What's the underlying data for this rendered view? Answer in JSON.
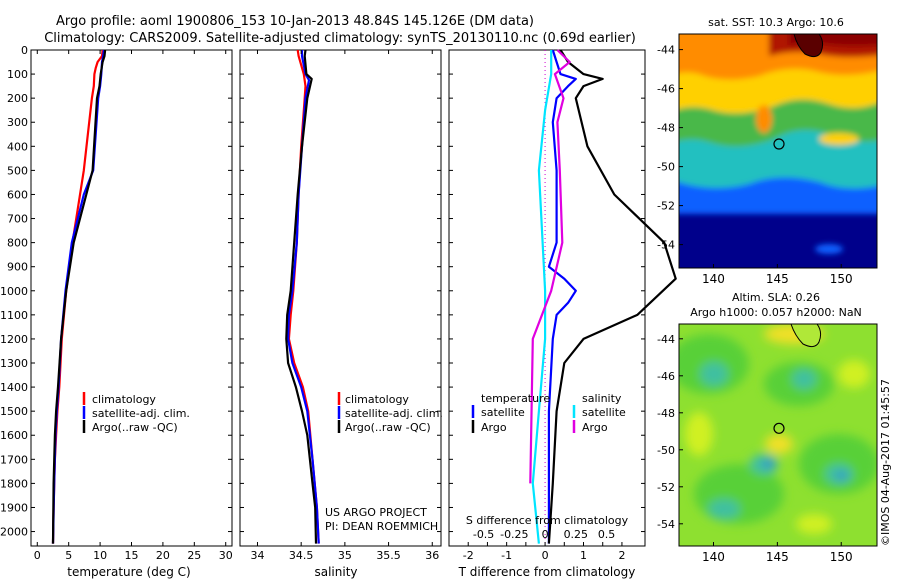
{
  "header": {
    "title_line1": "Argo profile: aoml 1900806_153 10-Jan-2013 48.84S 145.126E (DM data)",
    "title_line2": "Climatology: CARS2009. Satellite-adjusted climatology: synTS_20130110.nc (0.69d earlier)"
  },
  "colors": {
    "climatology": "#ff0000",
    "satellite": "#0000ff",
    "argo": "#000000",
    "s_satellite": "#00e5ff",
    "s_argo": "#e000e0"
  },
  "depth_axis": {
    "ticks": [
      "0",
      "100",
      "200",
      "300",
      "400",
      "500",
      "600",
      "700",
      "800",
      "900",
      "1000",
      "1100",
      "1200",
      "1300",
      "1400",
      "1500",
      "1600",
      "1700",
      "1800",
      "1900",
      "2000"
    ],
    "range": [
      0,
      2060
    ]
  },
  "legend": {
    "climatology": "climatology",
    "satellite_clim": "satellite-adj. clim.",
    "argo": "Argo(..raw -QC)",
    "temperature_header": "temperature",
    "salinity_header": "salinity",
    "satellite": "satellite",
    "argo_short": "Argo"
  },
  "credits": {
    "line1": "US ARGO PROJECT",
    "line2": "PI: DEAN ROEMMICH"
  },
  "footer_stamp": "©IMOS 04-Aug-2017 01:45:57",
  "chart_data": [
    {
      "type": "line",
      "xlabel": "temperature (deg C)",
      "ylabel": "",
      "xlim": [
        -1,
        31
      ],
      "ylim": [
        2060,
        0
      ],
      "xticks": [
        "0",
        "5",
        "10",
        "15",
        "20",
        "25",
        "30"
      ],
      "series": [
        {
          "name": "climatology",
          "x": [
            10.4,
            10.3,
            9.6,
            9.3,
            9.1,
            9.0,
            8.7,
            7.4,
            5.6,
            4.6,
            3.9,
            3.5,
            3.2,
            3.0,
            2.8,
            2.6,
            2.5
          ],
          "y": [
            0,
            25,
            50,
            75,
            100,
            150,
            200,
            500,
            800,
            1000,
            1200,
            1400,
            1500,
            1600,
            1700,
            1900,
            2050
          ]
        },
        {
          "name": "satellite-adj. clim.",
          "x": [
            10.6,
            10.5,
            10.3,
            10.2,
            10.0,
            9.7,
            8.9,
            7.4,
            5.5,
            4.5,
            3.8,
            3.4,
            3.1,
            2.9,
            2.7,
            2.5
          ],
          "y": [
            0,
            25,
            50,
            100,
            150,
            200,
            500,
            600,
            800,
            1000,
            1200,
            1400,
            1500,
            1600,
            1800,
            2050
          ]
        },
        {
          "name": "Argo(..raw -QC)",
          "x": [
            10.8,
            10.7,
            10.4,
            10.1,
            9.9,
            9.5,
            8.8,
            7.8,
            5.8,
            4.6,
            3.8,
            3.3,
            3.0,
            2.8,
            2.6,
            2.5
          ],
          "y": [
            0,
            25,
            50,
            100,
            150,
            200,
            500,
            600,
            800,
            1000,
            1200,
            1400,
            1500,
            1600,
            1800,
            2050
          ]
        }
      ]
    },
    {
      "type": "line",
      "xlabel": "salinity",
      "ylabel": "",
      "xlim": [
        33.8,
        36.1
      ],
      "ylim": [
        2060,
        0
      ],
      "xticks": [
        "34",
        "34.5",
        "35",
        "35.5",
        "36"
      ],
      "series": [
        {
          "name": "climatology",
          "x": [
            34.46,
            34.47,
            34.53,
            34.55,
            34.54,
            34.5,
            34.47,
            34.45,
            34.41,
            34.38,
            34.36,
            34.42,
            34.52,
            34.58,
            34.63,
            34.68,
            34.7
          ],
          "y": [
            0,
            25,
            100,
            150,
            200,
            400,
            600,
            800,
            1000,
            1100,
            1200,
            1300,
            1400,
            1500,
            1700,
            1900,
            2050
          ]
        },
        {
          "name": "satellite-adj. clim.",
          "x": [
            34.51,
            34.51,
            34.55,
            34.59,
            34.55,
            34.51,
            34.47,
            34.45,
            34.4,
            34.36,
            34.35,
            34.4,
            34.5,
            34.57,
            34.63,
            34.68,
            34.7
          ],
          "y": [
            0,
            25,
            100,
            125,
            200,
            400,
            600,
            800,
            1000,
            1100,
            1200,
            1300,
            1400,
            1500,
            1700,
            1900,
            2050
          ]
        },
        {
          "name": "Argo(..raw -QC)",
          "x": [
            34.55,
            34.54,
            34.56,
            34.62,
            34.57,
            34.51,
            34.46,
            34.42,
            34.38,
            34.34,
            34.33,
            34.35,
            34.44,
            34.51,
            34.57,
            34.6,
            34.63,
            34.66,
            34.67
          ],
          "y": [
            0,
            25,
            100,
            120,
            200,
            400,
            600,
            800,
            1000,
            1100,
            1200,
            1300,
            1400,
            1500,
            1600,
            1700,
            1800,
            1900,
            2050
          ]
        }
      ]
    },
    {
      "type": "line",
      "xlabel": "T difference from climatology",
      "xlabel_top": "S difference from climatology",
      "xlim": [
        -2.5,
        2.6
      ],
      "ylim": [
        2060,
        0
      ],
      "xticks": [
        "-2",
        "-1.5",
        "-1",
        "-0.5",
        "0",
        "0.5",
        "1",
        "1.5",
        "2"
      ],
      "xticks_top": [
        "-0.5",
        "-0.25",
        "0",
        "0.25",
        "0.5"
      ],
      "series": [
        {
          "name": "temperature satellite",
          "x": [
            0.2,
            0.3,
            0.4,
            0.8,
            0.6,
            0.3,
            0.2,
            0.3,
            0.3,
            0.1,
            0.5,
            0.8,
            0.6,
            0.3,
            0.2,
            0.1,
            0.1,
            0.1
          ],
          "y": [
            0,
            50,
            100,
            120,
            150,
            200,
            300,
            500,
            800,
            900,
            950,
            1000,
            1050,
            1100,
            1200,
            1500,
            1800,
            2050
          ]
        },
        {
          "name": "temperature Argo",
          "x": [
            0.4,
            0.6,
            1.0,
            1.5,
            1.0,
            0.8,
            1.1,
            1.8,
            3.1,
            3.4,
            2.4,
            1.0,
            0.5,
            0.3,
            0.2,
            0.1
          ],
          "y": [
            0,
            50,
            100,
            120,
            150,
            200,
            400,
            600,
            800,
            950,
            1100,
            1200,
            1300,
            1500,
            1800,
            2050
          ]
        },
        {
          "name": "salinity satellite",
          "x": [
            0.05,
            0.05,
            0.0,
            -0.05,
            0.0,
            0.0,
            -0.05,
            -0.1,
            -0.05
          ],
          "y": [
            0,
            100,
            250,
            500,
            1000,
            1200,
            1500,
            1800,
            2050
          ]
        },
        {
          "name": "salinity Argo",
          "x": [
            0.1,
            0.2,
            0.08,
            0.15,
            0.1,
            0.12,
            0.14,
            0.05,
            -0.1,
            -0.12
          ],
          "y": [
            0,
            50,
            100,
            200,
            300,
            500,
            800,
            1000,
            1200,
            1800
          ]
        }
      ]
    },
    {
      "type": "heatmap",
      "title": "sat. SST: 10.3  Argo: 10.6",
      "xlim": [
        137.3,
        152.8
      ],
      "ylim": [
        -55.2,
        -43.2
      ],
      "xticks": [
        "140",
        "145",
        "150"
      ],
      "yticks": [
        "-44",
        "-46",
        "-48",
        "-50",
        "-52",
        "-54"
      ],
      "marker": {
        "lon": 145.126,
        "lat": -48.84
      },
      "colors": [
        "#8b0000",
        "#ff8c00",
        "#ffd000",
        "#48b848",
        "#20c0c0",
        "#1060ff",
        "#00008b"
      ]
    },
    {
      "type": "heatmap",
      "title": "Altim. SLA: 0.26",
      "subtitle": "Argo h1000: 0.057  h2000: NaN",
      "xlim": [
        137.3,
        152.8
      ],
      "ylim": [
        -55.2,
        -43.2
      ],
      "xticks": [
        "140",
        "145",
        "150"
      ],
      "yticks": [
        "-44",
        "-46",
        "-48",
        "-50",
        "-52",
        "-54"
      ],
      "marker": {
        "lon": 145.126,
        "lat": -48.84
      },
      "colors": [
        "#c8f020",
        "#58d038",
        "#40c0a0",
        "#3090d0",
        "#f0e028"
      ]
    }
  ]
}
